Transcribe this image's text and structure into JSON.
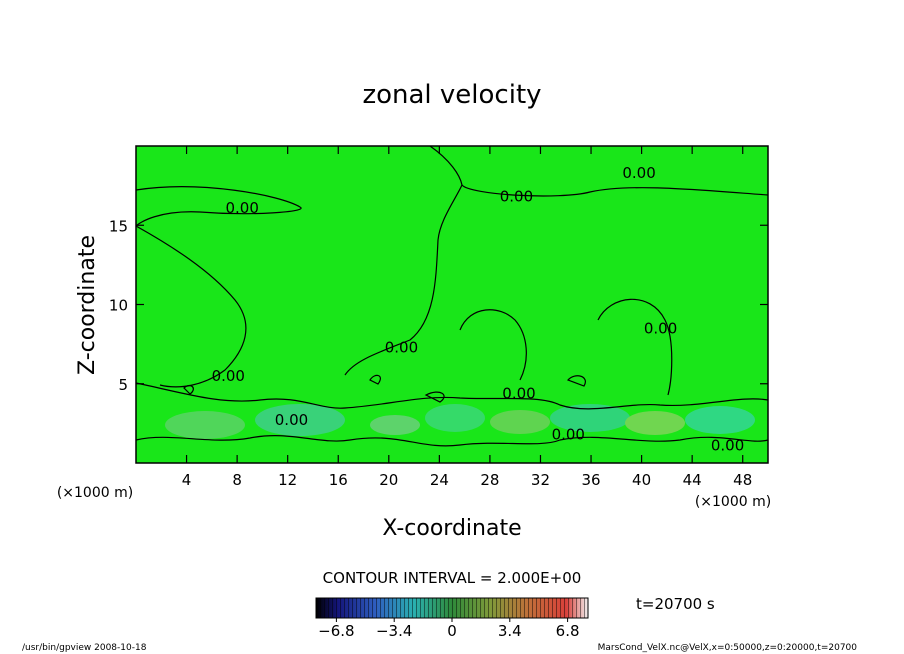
{
  "chart_data": {
    "type": "contour",
    "title": "zonal velocity",
    "xlabel": "X-coordinate",
    "ylabel": "Z-coordinate",
    "x_unit": "(×1000 m)",
    "y_unit": "(×1000 m)",
    "xlim": [
      0,
      50
    ],
    "ylim": [
      0,
      20
    ],
    "x_ticks": [
      4,
      8,
      12,
      16,
      20,
      24,
      28,
      32,
      36,
      40,
      44,
      48
    ],
    "y_ticks": [
      5,
      10,
      15
    ],
    "contour_labels": [
      {
        "text": "0.00",
        "x": 8.4,
        "y": 16.1
      },
      {
        "text": "0.00",
        "x": 30.1,
        "y": 16.8
      },
      {
        "text": "0.00",
        "x": 39.8,
        "y": 18.3
      },
      {
        "text": "0.00",
        "x": 21,
        "y": 7.3
      },
      {
        "text": "0.00",
        "x": 7.3,
        "y": 5.5
      },
      {
        "text": "0.00",
        "x": 12.3,
        "y": 2.7
      },
      {
        "text": "0.00",
        "x": 30.3,
        "y": 4.4
      },
      {
        "text": "0.00",
        "x": 34.2,
        "y": 1.8
      },
      {
        "text": "0.00",
        "x": 41.5,
        "y": 8.5
      },
      {
        "text": "0.00",
        "x": 46.8,
        "y": 1.1
      }
    ],
    "contour_interval_text": "CONTOUR INTERVAL = 2.000E+00",
    "time_text": "t=20700  s",
    "colorbar": {
      "range": [
        -8,
        8
      ],
      "tick_values": [
        -6.8,
        -3.4,
        0,
        3.4,
        6.8
      ],
      "tick_labels": [
        "−6.8",
        "−3.4",
        "0",
        "3.4",
        "6.8"
      ]
    },
    "colors": {
      "field": "#19e619",
      "positive_band": "#3fe36a",
      "weak_band": "#7ad95a"
    }
  },
  "footer": {
    "left": "/usr/bin/gpview   2008-10-18",
    "right": "MarsCond_VelX.nc@VelX,x=0:50000,z=0:20000,t=20700"
  }
}
